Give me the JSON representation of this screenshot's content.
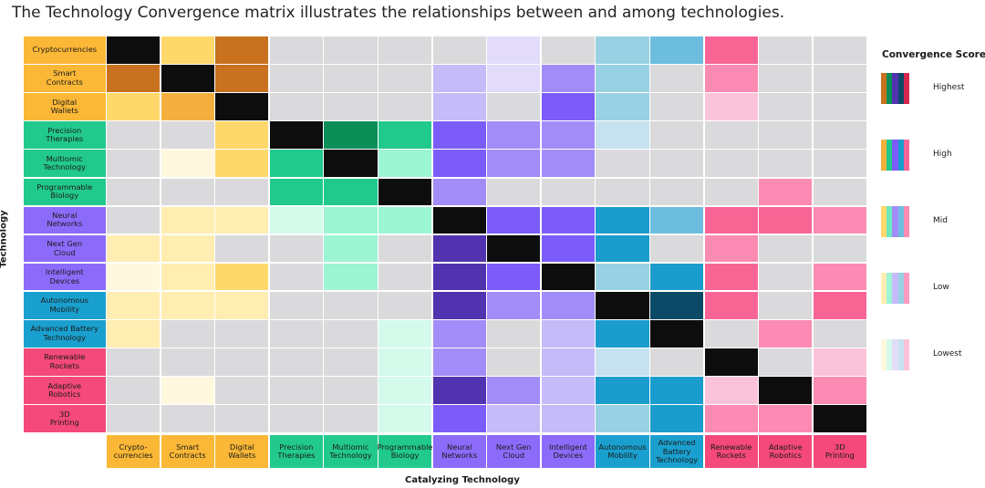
{
  "title": "The Technology Convergence matrix illustrates the relationships between and among technologies.",
  "chart_data": {
    "type": "heatmap",
    "title": "The Technology Convergence matrix illustrates the relationships between and among technologies.",
    "ylabel": "Technology",
    "xlabel": "Catalyzing Technology",
    "score_labels": [
      "Lowest",
      "Low",
      "Mid",
      "High",
      "Highest"
    ],
    "score_encoding": "0 = no relationship (gray), 1 = Lowest, 2 = Low, 3 = Mid, 4 = High, 5 = Highest, -1 = diagonal (same technology)",
    "groups": [
      {
        "name": "crypto",
        "color": "#FBB836"
      },
      {
        "name": "bio",
        "color": "#22C98D"
      },
      {
        "name": "ai",
        "color": "#8C6BFA"
      },
      {
        "name": "mobility",
        "color": "#1AA0CF"
      },
      {
        "name": "robotics",
        "color": "#F4497A"
      }
    ],
    "rows": [
      {
        "label": "Cryptocurrencies",
        "group": 0
      },
      {
        "label": "Smart\nContracts",
        "group": 0
      },
      {
        "label": "Digital\nWallets",
        "group": 0
      },
      {
        "label": "Precision\nTherapies",
        "group": 1
      },
      {
        "label": "Multiomic\nTechnology",
        "group": 1
      },
      {
        "label": "Programmable\nBiology",
        "group": 1
      },
      {
        "label": "Neural\nNetworks",
        "group": 2
      },
      {
        "label": "Next Gen\nCloud",
        "group": 2
      },
      {
        "label": "Intelligent\nDevices",
        "group": 2
      },
      {
        "label": "Autonomous\nMobility",
        "group": 3
      },
      {
        "label": "Advanced Battery\nTechnology",
        "group": 3
      },
      {
        "label": "Renewable\nRockets",
        "group": 4
      },
      {
        "label": "Adaptive\nRobotics",
        "group": 4
      },
      {
        "label": "3D\nPrinting",
        "group": 4
      }
    ],
    "columns": [
      {
        "label": "Crypto-\ncurrencies",
        "group": 0
      },
      {
        "label": "Smart\nContracts",
        "group": 0
      },
      {
        "label": "Digital\nWallets",
        "group": 0
      },
      {
        "label": "Precision\nTherapies",
        "group": 1
      },
      {
        "label": "Multiomic\nTechnology",
        "group": 1
      },
      {
        "label": "Programmable\nBiology",
        "group": 1
      },
      {
        "label": "Neural\nNetworks",
        "group": 2
      },
      {
        "label": "Next Gen\nCloud",
        "group": 2
      },
      {
        "label": "Intelligent\nDevices",
        "group": 2
      },
      {
        "label": "Autonomous\nMobility",
        "group": 3
      },
      {
        "label": "Advanced\nBattery\nTechnology",
        "group": 3
      },
      {
        "label": "Renewable\nRockets",
        "group": 4
      },
      {
        "label": "Adaptive\nRobotics",
        "group": 4
      },
      {
        "label": "3D\nPrinting",
        "group": 4
      }
    ],
    "values": [
      [
        -1,
        3,
        5,
        0,
        0,
        0,
        0,
        1,
        0,
        2,
        3,
        4,
        0,
        0
      ],
      [
        5,
        -1,
        5,
        0,
        0,
        0,
        2,
        1,
        3,
        2,
        0,
        3,
        0,
        0
      ],
      [
        3,
        4,
        -1,
        0,
        0,
        0,
        2,
        0,
        4,
        2,
        0,
        1,
        0,
        0
      ],
      [
        0,
        0,
        3,
        -1,
        5,
        4,
        4,
        3,
        3,
        1,
        0,
        0,
        0,
        0
      ],
      [
        0,
        1,
        3,
        4,
        -1,
        2,
        4,
        3,
        3,
        0,
        0,
        0,
        0,
        0
      ],
      [
        0,
        0,
        0,
        4,
        4,
        -1,
        3,
        0,
        0,
        0,
        0,
        0,
        3,
        0
      ],
      [
        0,
        2,
        2,
        1,
        2,
        2,
        -1,
        4,
        4,
        4,
        3,
        4,
        4,
        3
      ],
      [
        2,
        2,
        0,
        0,
        2,
        0,
        5,
        -1,
        4,
        4,
        0,
        3,
        0,
        0
      ],
      [
        1,
        2,
        3,
        0,
        2,
        0,
        5,
        4,
        -1,
        2,
        4,
        4,
        0,
        3
      ],
      [
        2,
        2,
        2,
        0,
        0,
        0,
        5,
        3,
        3,
        -1,
        5,
        4,
        0,
        4
      ],
      [
        2,
        0,
        0,
        0,
        0,
        1,
        3,
        0,
        2,
        4,
        -1,
        0,
        3,
        0
      ],
      [
        0,
        0,
        0,
        0,
        0,
        1,
        3,
        0,
        2,
        1,
        0,
        -1,
        0,
        1
      ],
      [
        0,
        1,
        0,
        0,
        0,
        1,
        5,
        3,
        2,
        4,
        4,
        1,
        -1,
        3
      ],
      [
        0,
        0,
        0,
        0,
        0,
        1,
        4,
        2,
        2,
        2,
        4,
        3,
        3,
        -1
      ]
    ],
    "palette": {
      "none": "#DADADC",
      "diagonal": "#0D0D0D",
      "crypto": [
        "#FFF8DF",
        "#FFEDB2",
        "#FFD86B",
        "#F4B03E",
        "#C8711E"
      ],
      "bio": [
        "#D4FAEC",
        "#9CF5D3",
        "#6EE8BD",
        "#22C98D",
        "#0B8E58"
      ],
      "ai": [
        "#E2DCFA",
        "#C5BBF8",
        "#A18CF8",
        "#7C5CF9",
        "#5233AF"
      ],
      "mobility": [
        "#C6E2F0",
        "#98D1E4",
        "#6DBEDE",
        "#1A9CCD",
        "#0B4A66"
      ],
      "robotics": [
        "#FBC3D9",
        "#FB9BBF",
        "#FB8BB3",
        "#F86595",
        "#D4284E"
      ]
    }
  },
  "legend": {
    "title": "Convergence Score",
    "levels": [
      {
        "label": "Highest",
        "colors": [
          "#C8711E",
          "#0B8E58",
          "#5233AF",
          "#0B4A66",
          "#D4284E"
        ]
      },
      {
        "label": "High",
        "colors": [
          "#F4B03E",
          "#22C98D",
          "#7C5CF9",
          "#1A9CCD",
          "#F86595"
        ]
      },
      {
        "label": "Mid",
        "colors": [
          "#FFD86B",
          "#6EE8BD",
          "#A18CF8",
          "#6DBEDE",
          "#FB8BB3"
        ]
      },
      {
        "label": "Low",
        "colors": [
          "#FFEDB2",
          "#9CF5D3",
          "#C5BBF8",
          "#98D1E4",
          "#FB9BBF"
        ]
      },
      {
        "label": "Lowest",
        "colors": [
          "#FFF8DF",
          "#D4FAEC",
          "#E2DCFA",
          "#C6E2F0",
          "#FBC3D9"
        ]
      }
    ]
  }
}
